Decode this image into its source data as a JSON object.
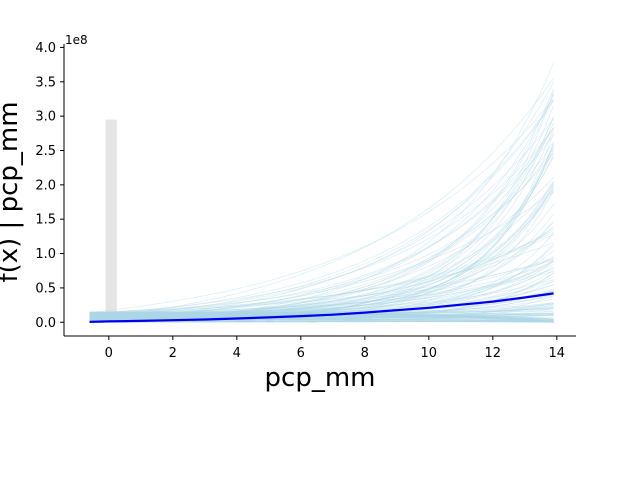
{
  "chart_data": {
    "type": "line",
    "title": "",
    "xlabel": "pcp_mm",
    "ylabel": "f(x) | pcp_mm",
    "y_offset_label": "1e8",
    "xlim": [
      -1.4,
      14.6
    ],
    "ylim": [
      -0.2,
      4.05
    ],
    "x_ticks": [
      0,
      2,
      4,
      6,
      8,
      10,
      12,
      14
    ],
    "x_tick_labels": [
      "0",
      "2",
      "4",
      "6",
      "8",
      "10",
      "12",
      "14"
    ],
    "y_ticks": [
      0.0,
      0.5,
      1.0,
      1.5,
      2.0,
      2.5,
      3.0,
      3.5,
      4.0
    ],
    "y_tick_labels": [
      "0.0",
      "0.5",
      "1.0",
      "1.5",
      "2.0",
      "2.5",
      "3.0",
      "3.5",
      "4.0"
    ],
    "grid": false,
    "legend": "none",
    "colors": {
      "mean_line": "#0000ee",
      "sample_lines": "#add8e6",
      "histogram": "#d3d3d3"
    },
    "histogram": {
      "bins": [
        {
          "x0": -0.1,
          "x1": 0.25,
          "height": 2.95
        },
        {
          "x0": 0.25,
          "x1": 0.5,
          "height": 0.04
        },
        {
          "x0": 0.8,
          "x1": 1.05,
          "height": 0.09
        },
        {
          "x0": 1.35,
          "x1": 1.6,
          "height": 0.1
        },
        {
          "x0": 1.95,
          "x1": 2.5,
          "height": 0.03
        },
        {
          "x0": 4.0,
          "x1": 4.3,
          "height": 0.06
        },
        {
          "x0": 4.3,
          "x1": 4.55,
          "height": 0.03
        },
        {
          "x0": 4.9,
          "x1": 5.15,
          "height": 0.05
        },
        {
          "x0": 6.2,
          "x1": 6.5,
          "height": 0.01
        },
        {
          "x0": 12.5,
          "x1": 12.75,
          "height": 0.02
        },
        {
          "x0": 13.0,
          "x1": 13.3,
          "height": 0.02
        }
      ]
    },
    "mean_curve": {
      "name": "",
      "x": [
        -0.6,
        0,
        1,
        2,
        3,
        4,
        5,
        6,
        7,
        8,
        9,
        10,
        11,
        12,
        13,
        13.9
      ],
      "y": [
        0.005,
        0.012,
        0.02,
        0.03,
        0.04,
        0.055,
        0.07,
        0.09,
        0.11,
        0.14,
        0.175,
        0.21,
        0.255,
        0.3,
        0.36,
        0.42
      ]
    },
    "sample_curves_summary": {
      "count": 160,
      "x_range": [
        -0.6,
        13.9
      ],
      "start_y_range": [
        0.0,
        0.15
      ],
      "end_y_range": [
        0.0,
        3.85
      ]
    }
  }
}
